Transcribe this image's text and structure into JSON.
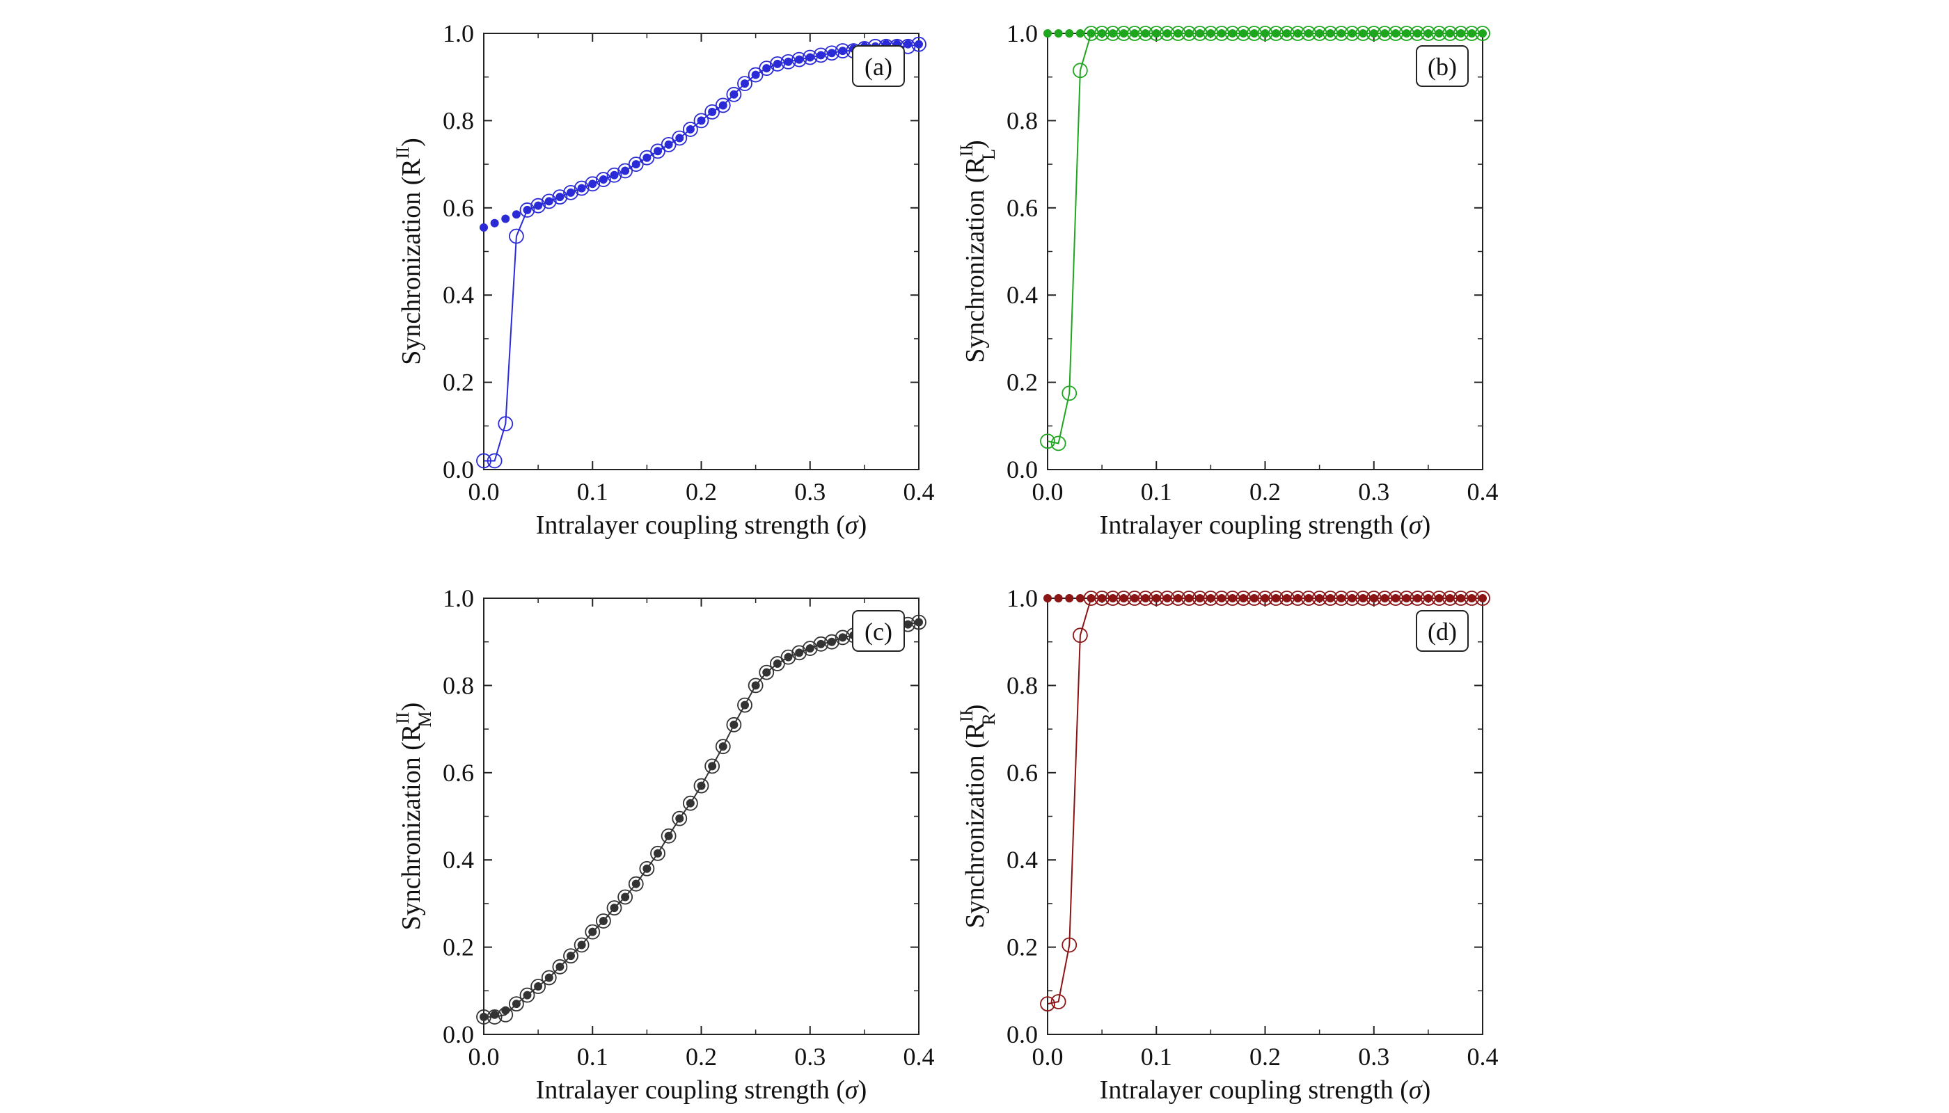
{
  "chart_data": [
    {
      "type": "line",
      "panel": "(a)",
      "ylabel_prefix": "Synchronization (R",
      "ylabel_sup": "II",
      "ylabel_sub": "",
      "ylabel_suffix": ")",
      "xlabel_prefix": "Intralayer coupling strength (",
      "xlabel_symbol": "σ",
      "xlabel_suffix": ")",
      "xlim": [
        0,
        0.4
      ],
      "ylim": [
        0,
        1.0
      ],
      "xticks": [
        "0.0",
        "0.1",
        "0.2",
        "0.3",
        "0.4"
      ],
      "yticks": [
        "0.0",
        "0.2",
        "0.4",
        "0.6",
        "0.8",
        "1.0"
      ],
      "color": "#2a2ad6",
      "series": [
        {
          "role": "open-circles-line",
          "x": [
            0.0,
            0.01,
            0.02,
            0.03,
            0.04,
            0.05,
            0.06,
            0.07,
            0.08,
            0.09,
            0.1,
            0.11,
            0.12,
            0.13,
            0.14,
            0.15,
            0.16,
            0.17,
            0.18,
            0.19,
            0.2,
            0.21,
            0.22,
            0.23,
            0.24,
            0.25,
            0.26,
            0.27,
            0.28,
            0.29,
            0.3,
            0.31,
            0.32,
            0.33,
            0.34,
            0.35,
            0.36,
            0.37,
            0.38,
            0.39,
            0.4
          ],
          "y": [
            0.02,
            0.02,
            0.105,
            0.535,
            0.595,
            0.605,
            0.615,
            0.625,
            0.635,
            0.645,
            0.655,
            0.665,
            0.675,
            0.685,
            0.7,
            0.715,
            0.73,
            0.745,
            0.76,
            0.78,
            0.8,
            0.82,
            0.835,
            0.86,
            0.885,
            0.905,
            0.92,
            0.93,
            0.935,
            0.94,
            0.945,
            0.95,
            0.955,
            0.96,
            0.96,
            0.965,
            0.97,
            0.97,
            0.97,
            0.97,
            0.975
          ]
        },
        {
          "role": "filled-dots",
          "x": [
            0.0,
            0.01,
            0.02,
            0.03,
            0.04,
            0.05,
            0.06,
            0.07,
            0.08,
            0.09,
            0.1,
            0.11,
            0.12,
            0.13,
            0.14,
            0.15,
            0.16,
            0.17,
            0.18,
            0.19,
            0.2,
            0.21,
            0.22,
            0.23,
            0.24,
            0.25,
            0.26,
            0.27,
            0.28,
            0.29,
            0.3,
            0.31,
            0.32,
            0.33,
            0.34,
            0.35,
            0.36,
            0.37,
            0.38,
            0.39,
            0.4
          ],
          "y": [
            0.555,
            0.565,
            0.575,
            0.585,
            0.595,
            0.605,
            0.615,
            0.625,
            0.635,
            0.645,
            0.655,
            0.665,
            0.675,
            0.685,
            0.7,
            0.715,
            0.73,
            0.745,
            0.76,
            0.78,
            0.8,
            0.82,
            0.835,
            0.86,
            0.885,
            0.905,
            0.92,
            0.93,
            0.935,
            0.94,
            0.945,
            0.95,
            0.955,
            0.96,
            0.965,
            0.97,
            0.97,
            0.975,
            0.975,
            0.975,
            0.975
          ]
        }
      ]
    },
    {
      "type": "line",
      "panel": "(b)",
      "ylabel_prefix": "Synchronization (R",
      "ylabel_sup": "II",
      "ylabel_sub": "L",
      "ylabel_suffix": ")",
      "xlabel_prefix": "Intralayer coupling strength (",
      "xlabel_symbol": "σ",
      "xlabel_suffix": ")",
      "xlim": [
        0,
        0.4
      ],
      "ylim": [
        0,
        1.0
      ],
      "xticks": [
        "0.0",
        "0.1",
        "0.2",
        "0.3",
        "0.4"
      ],
      "yticks": [
        "0.0",
        "0.2",
        "0.4",
        "0.6",
        "0.8",
        "1.0"
      ],
      "color": "#1fa61f",
      "series": [
        {
          "role": "open-circles-line",
          "x": [
            0.0,
            0.01,
            0.02,
            0.03,
            0.04,
            0.05,
            0.06,
            0.07,
            0.08,
            0.09,
            0.1,
            0.11,
            0.12,
            0.13,
            0.14,
            0.15,
            0.16,
            0.17,
            0.18,
            0.19,
            0.2,
            0.21,
            0.22,
            0.23,
            0.24,
            0.25,
            0.26,
            0.27,
            0.28,
            0.29,
            0.3,
            0.31,
            0.32,
            0.33,
            0.34,
            0.35,
            0.36,
            0.37,
            0.38,
            0.39,
            0.4
          ],
          "y": [
            0.065,
            0.06,
            0.175,
            0.915,
            1.0,
            1.0,
            1.0,
            1.0,
            1.0,
            1.0,
            1.0,
            1.0,
            1.0,
            1.0,
            1.0,
            1.0,
            1.0,
            1.0,
            1.0,
            1.0,
            1.0,
            1.0,
            1.0,
            1.0,
            1.0,
            1.0,
            1.0,
            1.0,
            1.0,
            1.0,
            1.0,
            1.0,
            1.0,
            1.0,
            1.0,
            1.0,
            1.0,
            1.0,
            1.0,
            1.0,
            1.0
          ]
        },
        {
          "role": "filled-dots",
          "x": [
            0.0,
            0.01,
            0.02,
            0.03,
            0.04,
            0.05,
            0.06,
            0.07,
            0.08,
            0.09,
            0.1,
            0.11,
            0.12,
            0.13,
            0.14,
            0.15,
            0.16,
            0.17,
            0.18,
            0.19,
            0.2,
            0.21,
            0.22,
            0.23,
            0.24,
            0.25,
            0.26,
            0.27,
            0.28,
            0.29,
            0.3,
            0.31,
            0.32,
            0.33,
            0.34,
            0.35,
            0.36,
            0.37,
            0.38,
            0.39,
            0.4
          ],
          "y": [
            1.0,
            1.0,
            1.0,
            1.0,
            1.0,
            1.0,
            1.0,
            1.0,
            1.0,
            1.0,
            1.0,
            1.0,
            1.0,
            1.0,
            1.0,
            1.0,
            1.0,
            1.0,
            1.0,
            1.0,
            1.0,
            1.0,
            1.0,
            1.0,
            1.0,
            1.0,
            1.0,
            1.0,
            1.0,
            1.0,
            1.0,
            1.0,
            1.0,
            1.0,
            1.0,
            1.0,
            1.0,
            1.0,
            1.0,
            1.0,
            1.0
          ]
        }
      ]
    },
    {
      "type": "line",
      "panel": "(c)",
      "ylabel_prefix": "Synchronization (R",
      "ylabel_sup": "II",
      "ylabel_sub": "M",
      "ylabel_suffix": ")",
      "xlabel_prefix": "Intralayer coupling strength (",
      "xlabel_symbol": "σ",
      "xlabel_suffix": ")",
      "xlim": [
        0,
        0.4
      ],
      "ylim": [
        0,
        1.0
      ],
      "xticks": [
        "0.0",
        "0.1",
        "0.2",
        "0.3",
        "0.4"
      ],
      "yticks": [
        "0.0",
        "0.2",
        "0.4",
        "0.6",
        "0.8",
        "1.0"
      ],
      "color": "#333333",
      "series": [
        {
          "role": "open-circles-line",
          "x": [
            0.0,
            0.01,
            0.02,
            0.03,
            0.04,
            0.05,
            0.06,
            0.07,
            0.08,
            0.09,
            0.1,
            0.11,
            0.12,
            0.13,
            0.14,
            0.15,
            0.16,
            0.17,
            0.18,
            0.19,
            0.2,
            0.21,
            0.22,
            0.23,
            0.24,
            0.25,
            0.26,
            0.27,
            0.28,
            0.29,
            0.3,
            0.31,
            0.32,
            0.33,
            0.34,
            0.35,
            0.36,
            0.37,
            0.38,
            0.39,
            0.4
          ],
          "y": [
            0.04,
            0.04,
            0.045,
            0.07,
            0.09,
            0.11,
            0.13,
            0.155,
            0.18,
            0.205,
            0.235,
            0.26,
            0.29,
            0.315,
            0.345,
            0.38,
            0.415,
            0.455,
            0.495,
            0.53,
            0.57,
            0.615,
            0.66,
            0.71,
            0.755,
            0.8,
            0.83,
            0.85,
            0.865,
            0.875,
            0.885,
            0.895,
            0.9,
            0.91,
            0.915,
            0.92,
            0.925,
            0.93,
            0.935,
            0.94,
            0.945
          ]
        },
        {
          "role": "filled-dots",
          "x": [
            0.0,
            0.01,
            0.02,
            0.03,
            0.04,
            0.05,
            0.06,
            0.07,
            0.08,
            0.09,
            0.1,
            0.11,
            0.12,
            0.13,
            0.14,
            0.15,
            0.16,
            0.17,
            0.18,
            0.19,
            0.2,
            0.21,
            0.22,
            0.23,
            0.24,
            0.25,
            0.26,
            0.27,
            0.28,
            0.29,
            0.3,
            0.31,
            0.32,
            0.33,
            0.34,
            0.35,
            0.36,
            0.37,
            0.38,
            0.39,
            0.4
          ],
          "y": [
            0.04,
            0.045,
            0.055,
            0.07,
            0.09,
            0.11,
            0.13,
            0.155,
            0.18,
            0.205,
            0.235,
            0.26,
            0.29,
            0.315,
            0.345,
            0.38,
            0.415,
            0.455,
            0.495,
            0.53,
            0.57,
            0.615,
            0.66,
            0.71,
            0.755,
            0.8,
            0.83,
            0.85,
            0.865,
            0.875,
            0.885,
            0.895,
            0.9,
            0.91,
            0.915,
            0.92,
            0.925,
            0.93,
            0.935,
            0.94,
            0.945
          ]
        }
      ]
    },
    {
      "type": "line",
      "panel": "(d)",
      "ylabel_prefix": "Synchronization (R",
      "ylabel_sup": "II",
      "ylabel_sub": "R",
      "ylabel_suffix": ")",
      "xlabel_prefix": "Intralayer coupling strength (",
      "xlabel_symbol": "σ",
      "xlabel_suffix": ")",
      "xlim": [
        0,
        0.4
      ],
      "ylim": [
        0,
        1.0
      ],
      "xticks": [
        "0.0",
        "0.1",
        "0.2",
        "0.3",
        "0.4"
      ],
      "yticks": [
        "0.0",
        "0.2",
        "0.4",
        "0.6",
        "0.8",
        "1.0"
      ],
      "color": "#8b1414",
      "series": [
        {
          "role": "open-circles-line",
          "x": [
            0.0,
            0.01,
            0.02,
            0.03,
            0.04,
            0.05,
            0.06,
            0.07,
            0.08,
            0.09,
            0.1,
            0.11,
            0.12,
            0.13,
            0.14,
            0.15,
            0.16,
            0.17,
            0.18,
            0.19,
            0.2,
            0.21,
            0.22,
            0.23,
            0.24,
            0.25,
            0.26,
            0.27,
            0.28,
            0.29,
            0.3,
            0.31,
            0.32,
            0.33,
            0.34,
            0.35,
            0.36,
            0.37,
            0.38,
            0.39,
            0.4
          ],
          "y": [
            0.07,
            0.075,
            0.205,
            0.915,
            1.0,
            1.0,
            1.0,
            1.0,
            1.0,
            1.0,
            1.0,
            1.0,
            1.0,
            1.0,
            1.0,
            1.0,
            1.0,
            1.0,
            1.0,
            1.0,
            1.0,
            1.0,
            1.0,
            1.0,
            1.0,
            1.0,
            1.0,
            1.0,
            1.0,
            1.0,
            1.0,
            1.0,
            1.0,
            1.0,
            1.0,
            1.0,
            1.0,
            1.0,
            1.0,
            1.0,
            1.0
          ]
        },
        {
          "role": "filled-dots",
          "x": [
            0.0,
            0.01,
            0.02,
            0.03,
            0.04,
            0.05,
            0.06,
            0.07,
            0.08,
            0.09,
            0.1,
            0.11,
            0.12,
            0.13,
            0.14,
            0.15,
            0.16,
            0.17,
            0.18,
            0.19,
            0.2,
            0.21,
            0.22,
            0.23,
            0.24,
            0.25,
            0.26,
            0.27,
            0.28,
            0.29,
            0.3,
            0.31,
            0.32,
            0.33,
            0.34,
            0.35,
            0.36,
            0.37,
            0.38,
            0.39,
            0.4
          ],
          "y": [
            1.0,
            1.0,
            1.0,
            1.0,
            1.0,
            1.0,
            1.0,
            1.0,
            1.0,
            1.0,
            1.0,
            1.0,
            1.0,
            1.0,
            1.0,
            1.0,
            1.0,
            1.0,
            1.0,
            1.0,
            1.0,
            1.0,
            1.0,
            1.0,
            1.0,
            1.0,
            1.0,
            1.0,
            1.0,
            1.0,
            1.0,
            1.0,
            1.0,
            1.0,
            1.0,
            1.0,
            1.0,
            1.0,
            1.0,
            1.0,
            1.0
          ]
        }
      ]
    }
  ]
}
